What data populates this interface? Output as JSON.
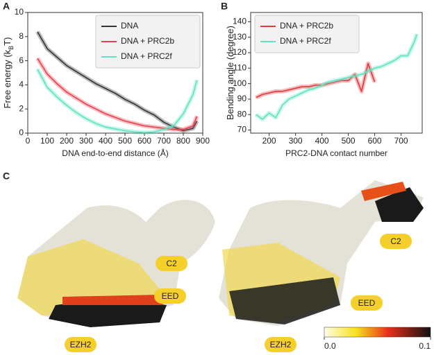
{
  "chart_data": [
    {
      "type": "line",
      "panel": "A",
      "x_label": "DNA end-to-end distance (Å)",
      "y_label": [
        "Free energy (k",
        "B",
        "T)"
      ],
      "x": [
        50,
        100,
        150,
        200,
        250,
        300,
        350,
        400,
        450,
        500,
        550,
        600,
        650,
        700,
        750,
        800,
        850,
        870
      ],
      "series": [
        {
          "name": "DNA",
          "color": "#333333",
          "values": [
            8.4,
            7.0,
            6.3,
            5.6,
            5.1,
            4.6,
            4.1,
            3.7,
            3.3,
            2.8,
            2.4,
            1.9,
            1.5,
            0.9,
            0.5,
            0.2,
            0.4,
            1.0
          ]
        },
        {
          "name": "DNA + PRC2b",
          "color": "#e8434f",
          "values": [
            6.2,
            4.9,
            4.1,
            3.4,
            2.9,
            2.4,
            2.0,
            1.6,
            1.3,
            1.0,
            0.8,
            0.6,
            0.5,
            0.4,
            0.3,
            0.3,
            0.6,
            1.4
          ]
        },
        {
          "name": "DNA + PRC2f",
          "color": "#5fe3c0",
          "values": [
            5.3,
            3.8,
            3.0,
            2.3,
            1.7,
            1.2,
            0.8,
            0.5,
            0.35,
            0.2,
            0.1,
            0.05,
            0.1,
            0.3,
            0.6,
            1.6,
            3.2,
            4.4
          ]
        }
      ],
      "xlim": [
        0,
        900
      ],
      "xticks": [
        0,
        100,
        200,
        300,
        400,
        500,
        600,
        700,
        800,
        900
      ],
      "ylim": [
        0,
        10
      ],
      "yticks": [
        0,
        2,
        4,
        6,
        8,
        10
      ],
      "legend": "upper right"
    },
    {
      "type": "line",
      "panel": "B",
      "x_label": "PRC2-DNA contact number",
      "y_label": [
        "Bending angle (degree)"
      ],
      "x": [
        150,
        175,
        200,
        225,
        250,
        275,
        300,
        325,
        350,
        375,
        400,
        425,
        450,
        475,
        500,
        525,
        550,
        575,
        600,
        625,
        650,
        675,
        700,
        725,
        750,
        760
      ],
      "series": [
        {
          "name": "DNA + PRC2b",
          "color": "#e03a3a",
          "values": [
            91,
            93,
            94,
            95,
            95,
            96,
            97,
            98,
            98,
            99,
            99,
            100,
            101,
            102,
            102,
            106,
            95,
            113,
            101,
            null,
            null,
            null,
            null,
            null,
            null,
            null
          ]
        },
        {
          "name": "DNA + PRC2f",
          "color": "#5fe3c0",
          "values": [
            80,
            77,
            81,
            78,
            86,
            90,
            92,
            94,
            96,
            97,
            99,
            101,
            102,
            103,
            104,
            105,
            106,
            108,
            110,
            111,
            113,
            115,
            118,
            118,
            127,
            132
          ]
        }
      ],
      "xlim": [
        130,
        780
      ],
      "xticks": [
        200,
        300,
        400,
        500,
        600,
        700
      ],
      "ylim": [
        68,
        146
      ],
      "yticks": [
        70,
        80,
        90,
        100,
        110,
        120,
        130,
        140
      ],
      "legend": "upper left"
    }
  ],
  "panel_c": {
    "label": "C",
    "left_labels": [
      "C2",
      "EED",
      "EZH2"
    ],
    "right_labels": [
      "C2",
      "EED",
      "EZH2"
    ],
    "colorbar": {
      "lim": [
        0,
        0.1
      ],
      "ticks": [
        {
          "value": 0,
          "label": "0.0"
        },
        0.1
      ]
    }
  }
}
